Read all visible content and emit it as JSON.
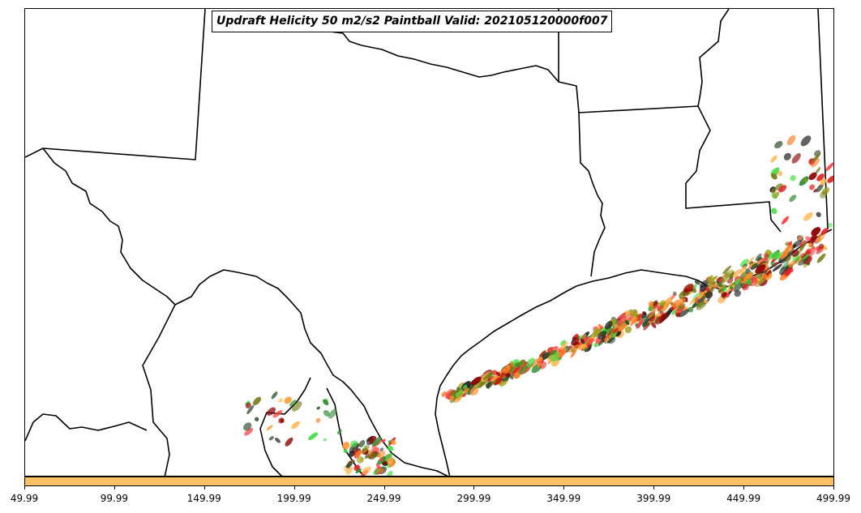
{
  "title": "Updraft Helicity 50 m2/s2 Paintball Valid: 202105120000f007",
  "colorbar": {
    "color": "#fcc064",
    "ticks": [
      "49.99",
      "99.99",
      "149.99",
      "199.99",
      "249.99",
      "299.99",
      "349.99",
      "399.99",
      "449.99",
      "499.99"
    ]
  },
  "paintball_colors": [
    "#e02020",
    "#ff4040",
    "#ff7f2a",
    "#ff9933",
    "#ffb347",
    "#2e8b2e",
    "#44dd44",
    "#7a7a1a",
    "#a0a020",
    "#8b0000",
    "#2f4f2f",
    "#222222"
  ]
}
